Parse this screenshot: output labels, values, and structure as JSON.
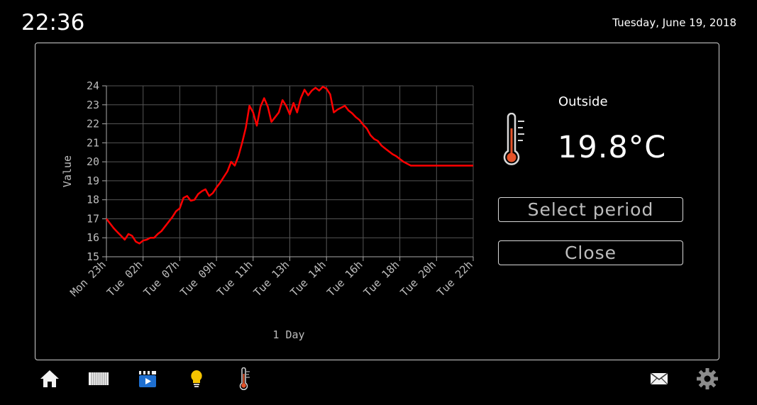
{
  "header": {
    "clock": "22:36",
    "date": "Tuesday, June 19, 2018"
  },
  "sensor": {
    "location": "Outside",
    "temperature": "19.8°C"
  },
  "buttons": {
    "select_period": "Select period",
    "close": "Close"
  },
  "nav": {
    "left_icons": [
      "home-icon",
      "radiator-icon",
      "media-icon",
      "light-bulb-icon",
      "thermometer-icon"
    ],
    "right_icons": [
      "mail-icon",
      "gear-icon"
    ]
  },
  "colors": {
    "series": "#ff0000",
    "media_icon": "#1e6fd0",
    "bulb": "#f5c400",
    "thermometer_fill": "#e5532a"
  },
  "chart_data": {
    "type": "line",
    "xlabel": "1 Day",
    "ylabel": "Value",
    "ylim": [
      15,
      24
    ],
    "yticks": [
      "15",
      "16",
      "17",
      "18",
      "19",
      "20",
      "21",
      "22",
      "23",
      "24"
    ],
    "xticks": [
      "Mon 23h",
      "Tue 02h",
      "Tue 07h",
      "Tue 09h",
      "Tue 11h",
      "Tue 13h",
      "Tue 14h",
      "Tue 16h",
      "Tue 18h",
      "Tue 20h",
      "Tue 22h"
    ],
    "grid": true,
    "series": [
      {
        "x": [
          0,
          0.1,
          0.2,
          0.3,
          0.4,
          0.5,
          0.6,
          0.7,
          0.8,
          0.9,
          1.0,
          1.1,
          1.2,
          1.3,
          1.4,
          1.5,
          1.6,
          1.7,
          1.8,
          1.9,
          2.0,
          2.1,
          2.2,
          2.3,
          2.4,
          2.5,
          2.6,
          2.7,
          2.8,
          2.9,
          3.0,
          3.1,
          3.2,
          3.3,
          3.4,
          3.5,
          3.6,
          3.7,
          3.8,
          3.9,
          4.0,
          4.1,
          4.2,
          4.3,
          4.4,
          4.5,
          4.6,
          4.7,
          4.8,
          4.9,
          5.0,
          5.1,
          5.2,
          5.3,
          5.4,
          5.5,
          5.6,
          5.7,
          5.8,
          5.9,
          6.0,
          6.1,
          6.2,
          6.3,
          6.4,
          6.5,
          6.6,
          6.7,
          6.8,
          6.9,
          7.0,
          7.1,
          7.2,
          7.3,
          7.4,
          7.5,
          7.6,
          7.7,
          7.8,
          7.9,
          8.0,
          8.1,
          8.2,
          8.3,
          8.4,
          8.5,
          8.6,
          8.7,
          8.8,
          8.9,
          9.0,
          9.1,
          9.2,
          9.3,
          9.4,
          9.5,
          9.6,
          9.7,
          9.8,
          9.9,
          10.0
        ],
        "y": [
          17.0,
          16.75,
          16.5,
          16.3,
          16.1,
          15.9,
          16.2,
          16.1,
          15.8,
          15.7,
          15.85,
          15.9,
          16.0,
          16.0,
          16.2,
          16.35,
          16.6,
          16.85,
          17.1,
          17.4,
          17.55,
          18.1,
          18.2,
          17.95,
          18.0,
          18.3,
          18.45,
          18.55,
          18.2,
          18.35,
          18.65,
          18.9,
          19.2,
          19.5,
          20.0,
          19.8,
          20.3,
          21.0,
          21.8,
          22.95,
          22.6,
          21.9,
          22.9,
          23.35,
          22.9,
          22.1,
          22.35,
          22.6,
          23.25,
          22.95,
          22.5,
          23.1,
          22.6,
          23.35,
          23.8,
          23.5,
          23.75,
          23.9,
          23.75,
          23.95,
          23.85,
          23.55,
          22.6,
          22.75,
          22.85,
          22.95,
          22.7,
          22.55,
          22.35,
          22.2,
          21.95,
          21.75,
          21.4,
          21.2,
          21.1,
          20.85,
          20.7,
          20.55,
          20.4,
          20.3,
          20.15,
          20.0,
          19.9,
          19.8,
          19.8,
          19.8,
          19.8,
          19.8,
          19.8,
          19.8,
          19.8,
          19.8,
          19.8,
          19.8,
          19.8,
          19.8,
          19.8,
          19.8,
          19.8,
          19.8,
          19.8
        ]
      }
    ]
  }
}
